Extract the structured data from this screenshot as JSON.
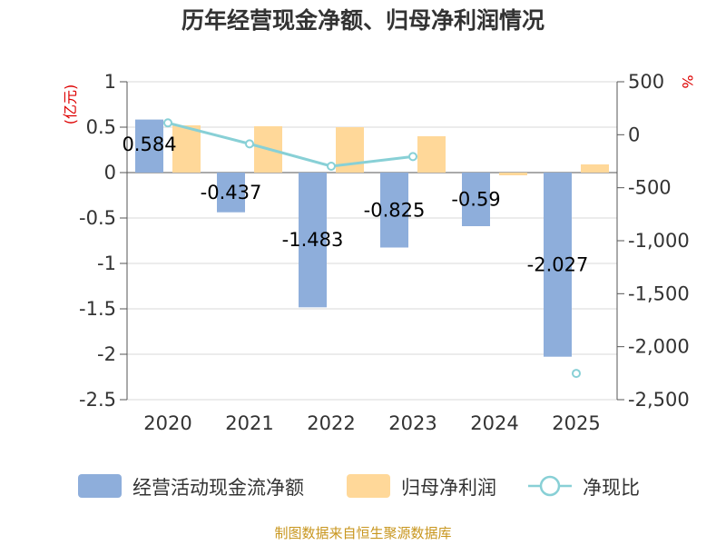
{
  "chart_data": {
    "type": "bar",
    "title": "历年经营现金净额、归母净利润情况",
    "categories": [
      "2020",
      "2021",
      "2022",
      "2023",
      "2024",
      "2025"
    ],
    "left_axis": {
      "unit": "(亿元)",
      "ylim": [
        -2.5,
        1
      ],
      "ticks": [
        "1",
        "0.5",
        "0",
        "-0.5",
        "-1",
        "-1.5",
        "-2",
        "-2.5"
      ],
      "tick_values": [
        1,
        0.5,
        0,
        -0.5,
        -1,
        -1.5,
        -2,
        -2.5
      ]
    },
    "right_axis": {
      "unit": "%",
      "ylim": [
        -2500,
        500
      ],
      "ticks": [
        "500",
        "0",
        "-500",
        "-1,000",
        "-1,500",
        "-2,000",
        "-2,500"
      ],
      "tick_values": [
        500,
        0,
        -500,
        -1000,
        -1500,
        -2000,
        -2500
      ]
    },
    "series": [
      {
        "name": "经营活动现金流净额",
        "type": "bar",
        "axis": "left",
        "color": "#8eaedb",
        "values": [
          0.584,
          -0.437,
          -1.483,
          -0.825,
          -0.59,
          -2.027
        ],
        "labels": [
          "0.584",
          "-0.437",
          "-1.483",
          "-0.825",
          "-0.59",
          "-2.027"
        ]
      },
      {
        "name": "归母净利润",
        "type": "bar",
        "axis": "left",
        "color": "#ffd899",
        "values": [
          0.52,
          0.51,
          0.5,
          0.4,
          -0.03,
          0.09
        ]
      },
      {
        "name": "净现比",
        "type": "line",
        "axis": "right",
        "color": "#88d0d6",
        "values": [
          112,
          -86,
          -297,
          -206,
          null,
          -2252
        ]
      }
    ]
  },
  "source": "制图数据来自恒生聚源数据库"
}
